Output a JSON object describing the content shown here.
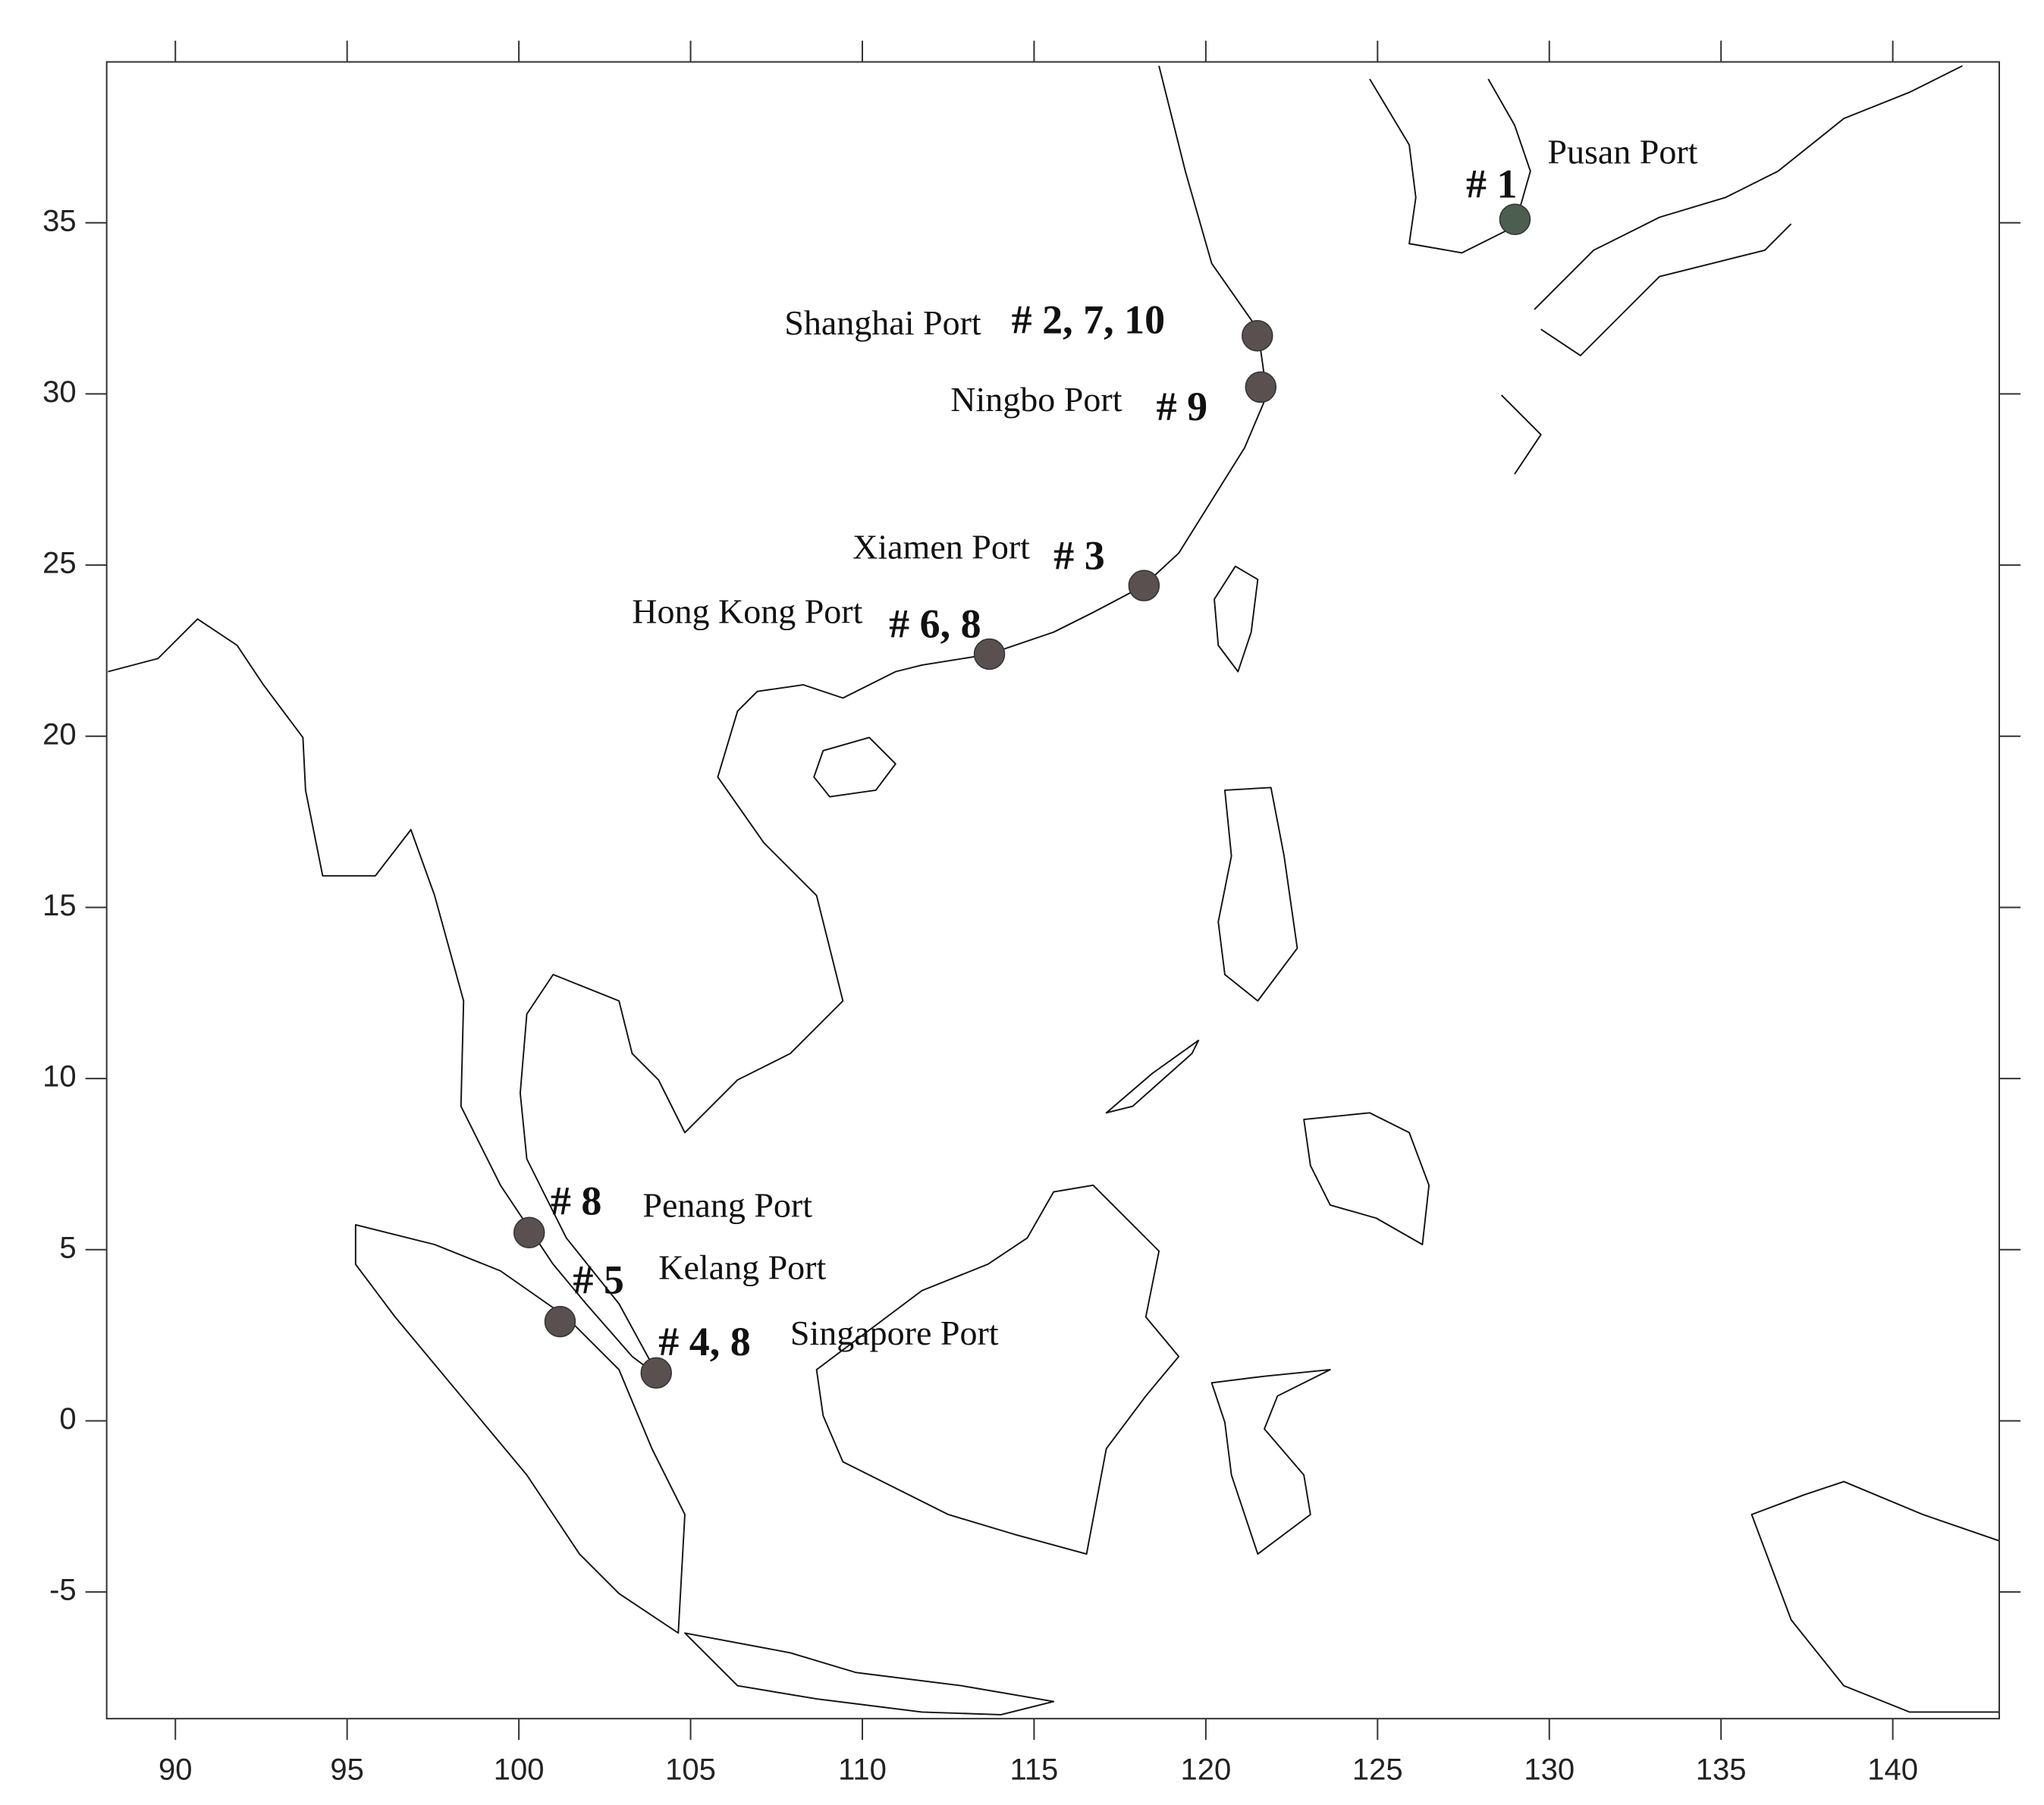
{
  "chart_data": {
    "type": "scatter",
    "xlim": [
      88,
      143.1
    ],
    "ylim": [
      -8.7,
      39.7
    ],
    "xticks": [
      90,
      95,
      100,
      105,
      110,
      115,
      120,
      125,
      130,
      135,
      140
    ],
    "yticks": [
      -5,
      0,
      5,
      10,
      15,
      20,
      25,
      30,
      35
    ],
    "points": [
      {
        "label": "Pusan Port",
        "id": "# 1",
        "x": 129.0,
        "y": 35.1,
        "color": "#4b5e50"
      },
      {
        "label": "Shanghai Port",
        "id": "# 2, 7, 10",
        "x": 121.5,
        "y": 31.7,
        "color": "#5a5050"
      },
      {
        "label": "Ningbo Port",
        "id": "# 9",
        "x": 121.6,
        "y": 30.2,
        "color": "#5a5050"
      },
      {
        "label": "Xiamen Port",
        "id": "# 3",
        "x": 118.2,
        "y": 24.4,
        "color": "#5a5050"
      },
      {
        "label": "Hong Kong Port",
        "id": "# 6, 8",
        "x": 113.7,
        "y": 22.4,
        "color": "#5a5050"
      },
      {
        "label": "Penang Port",
        "id": "# 8",
        "x": 100.3,
        "y": 5.5,
        "color": "#5a5050"
      },
      {
        "label": "Kelang Port",
        "id": "# 5",
        "x": 101.2,
        "y": 2.9,
        "color": "#5a5050"
      },
      {
        "label": "Singapore Port",
        "id": "# 4, 8",
        "x": 104.0,
        "y": 1.4,
        "color": "#5a5050"
      }
    ]
  }
}
